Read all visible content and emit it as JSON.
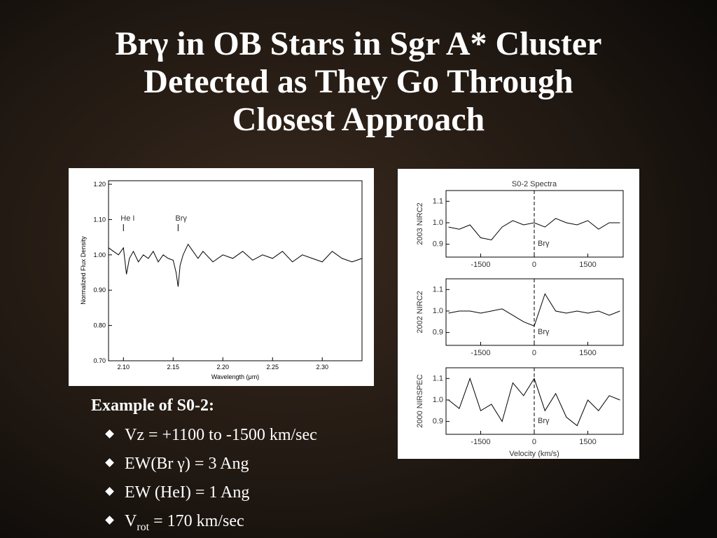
{
  "title": [
    "Brγ in OB Stars in Sgr A* Cluster",
    "Detected as They Go Through",
    "Closest Approach"
  ],
  "bullets": {
    "heading": "Example of S0-2:",
    "items": [
      {
        "main": "Vz = +1100 to -1500 km/sec"
      },
      {
        "main": "EW(Br γ) = 3 Ang"
      },
      {
        "main": "EW (HeI) = 1 Ang"
      },
      {
        "main": "V",
        "sub": "rot",
        "tail": " = 170 km/sec"
      }
    ]
  },
  "chart_data": [
    {
      "type": "line",
      "xlabel": "Wavelength (μm)",
      "ylabel": "Normalized Flux Density",
      "xlim": [
        2.085,
        2.34
      ],
      "ylim": [
        0.7,
        1.21
      ],
      "xticks": [
        {
          "value": 2.1,
          "label": "2.10"
        },
        {
          "value": 2.15,
          "label": "2.15"
        },
        {
          "value": 2.2,
          "label": "2.20"
        },
        {
          "value": 2.25,
          "label": "2.25"
        },
        {
          "value": 2.3,
          "label": "2.30"
        }
      ],
      "yticks": [
        {
          "value": 0.7,
          "label": "0.70"
        },
        {
          "value": 0.8,
          "label": "0.80"
        },
        {
          "value": 0.9,
          "label": "0.90"
        },
        {
          "value": 1.0,
          "label": "1.00"
        },
        {
          "value": 1.1,
          "label": "1.10"
        },
        {
          "value": 1.2,
          "label": "1.20"
        }
      ],
      "annotations": [
        {
          "text": "He I",
          "x": 2.1
        },
        {
          "text": "Brγ",
          "x": 2.155
        }
      ],
      "color": "#000000",
      "x": [
        2.085,
        2.09,
        2.095,
        2.1,
        2.103,
        2.106,
        2.11,
        2.115,
        2.12,
        2.125,
        2.13,
        2.135,
        2.14,
        2.145,
        2.15,
        2.153,
        2.155,
        2.157,
        2.16,
        2.165,
        2.17,
        2.175,
        2.18,
        2.19,
        2.2,
        2.21,
        2.22,
        2.23,
        2.24,
        2.25,
        2.26,
        2.27,
        2.28,
        2.29,
        2.3,
        2.31,
        2.32,
        2.33,
        2.34
      ],
      "values": [
        1.02,
        1.01,
        1.0,
        1.02,
        0.945,
        0.99,
        1.01,
        0.98,
        1.0,
        0.99,
        1.01,
        0.98,
        1.0,
        0.99,
        0.985,
        0.95,
        0.91,
        0.97,
        1.0,
        1.03,
        1.01,
        0.99,
        1.01,
        0.98,
        1.0,
        0.99,
        1.01,
        0.985,
        1.0,
        0.99,
        1.01,
        0.98,
        1.0,
        0.99,
        0.98,
        1.01,
        0.99,
        0.98,
        0.99
      ]
    },
    {
      "type": "line",
      "title": "S0-2 Spectra",
      "xlabel": "Velocity (km/s)",
      "xlim": [
        -2470,
        2490
      ],
      "ylim": [
        0.84,
        1.15
      ],
      "xticks": [
        -1500,
        0,
        1500
      ],
      "yticks": [
        {
          "value": 0.9,
          "label": "0.9"
        },
        {
          "value": 1.0,
          "label": "1.0"
        },
        {
          "value": 1.1,
          "label": "1.1"
        }
      ],
      "annotation": {
        "text": "Brγ",
        "x": 0
      },
      "color": "#000000",
      "x": [
        -2400,
        -2100,
        -1800,
        -1500,
        -1200,
        -900,
        -600,
        -300,
        0,
        300,
        600,
        900,
        1200,
        1500,
        1800,
        2100,
        2400
      ],
      "panels": [
        {
          "ylabel": "2003 NIRC2",
          "values": [
            0.98,
            0.97,
            0.99,
            0.93,
            0.92,
            0.98,
            1.01,
            0.99,
            1.0,
            0.98,
            1.02,
            1.0,
            0.99,
            1.01,
            0.97,
            1.0,
            1.0
          ]
        },
        {
          "ylabel": "2002 NIRC2",
          "values": [
            0.99,
            1.0,
            1.0,
            0.99,
            1.0,
            1.01,
            0.98,
            0.95,
            0.93,
            1.08,
            1.0,
            0.99,
            1.0,
            0.99,
            1.0,
            0.98,
            1.0
          ]
        },
        {
          "ylabel": "2000 NIRSPEC",
          "values": [
            1.0,
            0.96,
            1.1,
            0.95,
            0.98,
            0.9,
            1.08,
            1.02,
            1.1,
            0.95,
            1.03,
            0.92,
            0.88,
            1.0,
            0.95,
            1.02,
            1.0
          ]
        }
      ]
    }
  ]
}
